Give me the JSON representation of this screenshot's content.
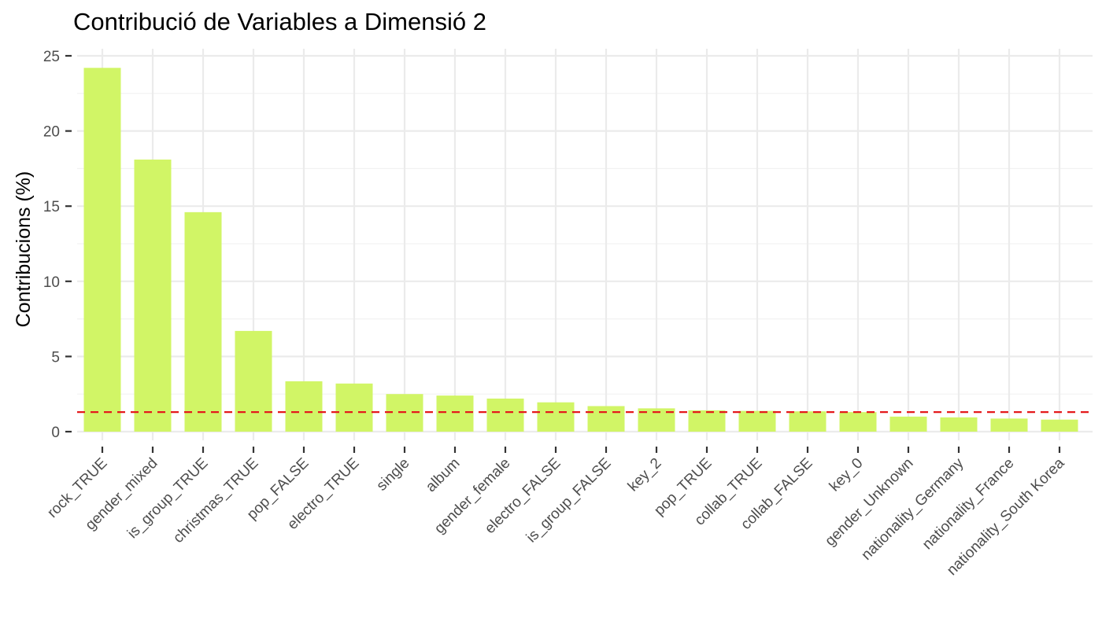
{
  "chart_data": {
    "type": "bar",
    "title": "Contribució de Variables a Dimensió 2",
    "xlabel": "",
    "ylabel": "Contribucions (%)",
    "ylim": [
      0,
      25
    ],
    "y_ticks": [
      0,
      5,
      10,
      15,
      20,
      25
    ],
    "grid": true,
    "categories": [
      "rock_TRUE",
      "gender_mixed",
      "is_group_TRUE",
      "christmas_TRUE",
      "pop_FALSE",
      "electro_TRUE",
      "single",
      "album",
      "gender_female",
      "electro_FALSE",
      "is_group_FALSE",
      "key_2",
      "pop_TRUE",
      "collab_TRUE",
      "collab_FALSE",
      "key_0",
      "gender_Unknown",
      "nationality_Germany",
      "nationality_France",
      "nationality_South Korea"
    ],
    "values": [
      24.2,
      18.1,
      14.6,
      6.7,
      3.35,
      3.2,
      2.5,
      2.4,
      2.2,
      1.95,
      1.7,
      1.55,
      1.42,
      1.38,
      1.35,
      1.3,
      1.0,
      0.95,
      0.87,
      0.8
    ],
    "reference_line": {
      "y": 1.3,
      "style": "dashed",
      "color": "#e41a1c"
    },
    "bar_color": "#d1f566"
  }
}
